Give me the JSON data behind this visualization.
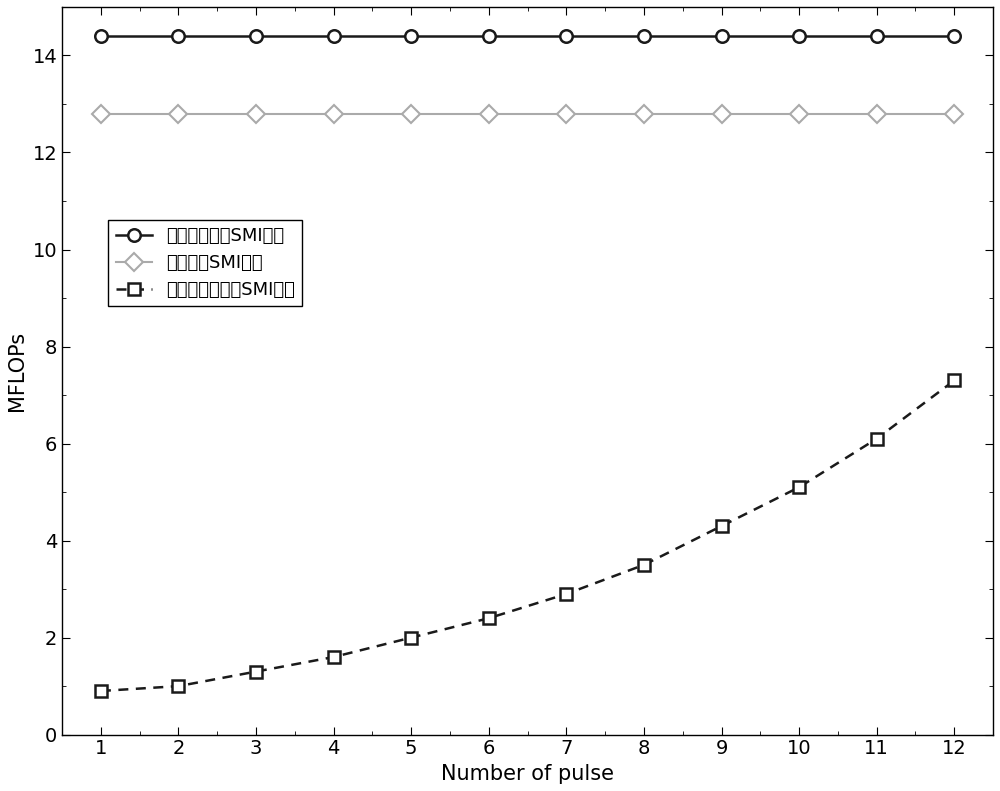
{
  "x": [
    1,
    2,
    3,
    4,
    5,
    6,
    7,
    8,
    9,
    10,
    11,
    12
  ],
  "line1_y": [
    14.4,
    14.4,
    14.4,
    14.4,
    14.4,
    14.4,
    14.4,
    14.4,
    14.4,
    14.4,
    14.4,
    14.4
  ],
  "line2_y": [
    12.8,
    12.8,
    12.8,
    12.8,
    12.8,
    12.8,
    12.8,
    12.8,
    12.8,
    12.8,
    12.8,
    12.8
  ],
  "line3_y": [
    0.9,
    1.0,
    1.3,
    1.6,
    2.0,
    2.4,
    2.9,
    3.5,
    4.3,
    5.1,
    6.1,
    7.3
  ],
  "line1_color": "#1a1a1a",
  "line2_color": "#aaaaaa",
  "line3_color": "#1a1a1a",
  "line1_label": "直接矩阵求逆SMI算法",
  "line2_label": "矩阵递推SMI算法",
  "line3_label": "按脉冲阶数递推SMI算法",
  "xlabel": "Number of pulse",
  "ylabel": "MFLOPs",
  "ylim": [
    0,
    15
  ],
  "xlim": [
    0.5,
    12.5
  ],
  "yticks": [
    0,
    2,
    4,
    6,
    8,
    10,
    12,
    14
  ],
  "xticks": [
    1,
    2,
    3,
    4,
    5,
    6,
    7,
    8,
    9,
    10,
    11,
    12
  ],
  "figsize": [
    10.0,
    7.91
  ],
  "dpi": 100,
  "font_size": 15,
  "tick_fontsize": 14,
  "legend_fontsize": 13
}
